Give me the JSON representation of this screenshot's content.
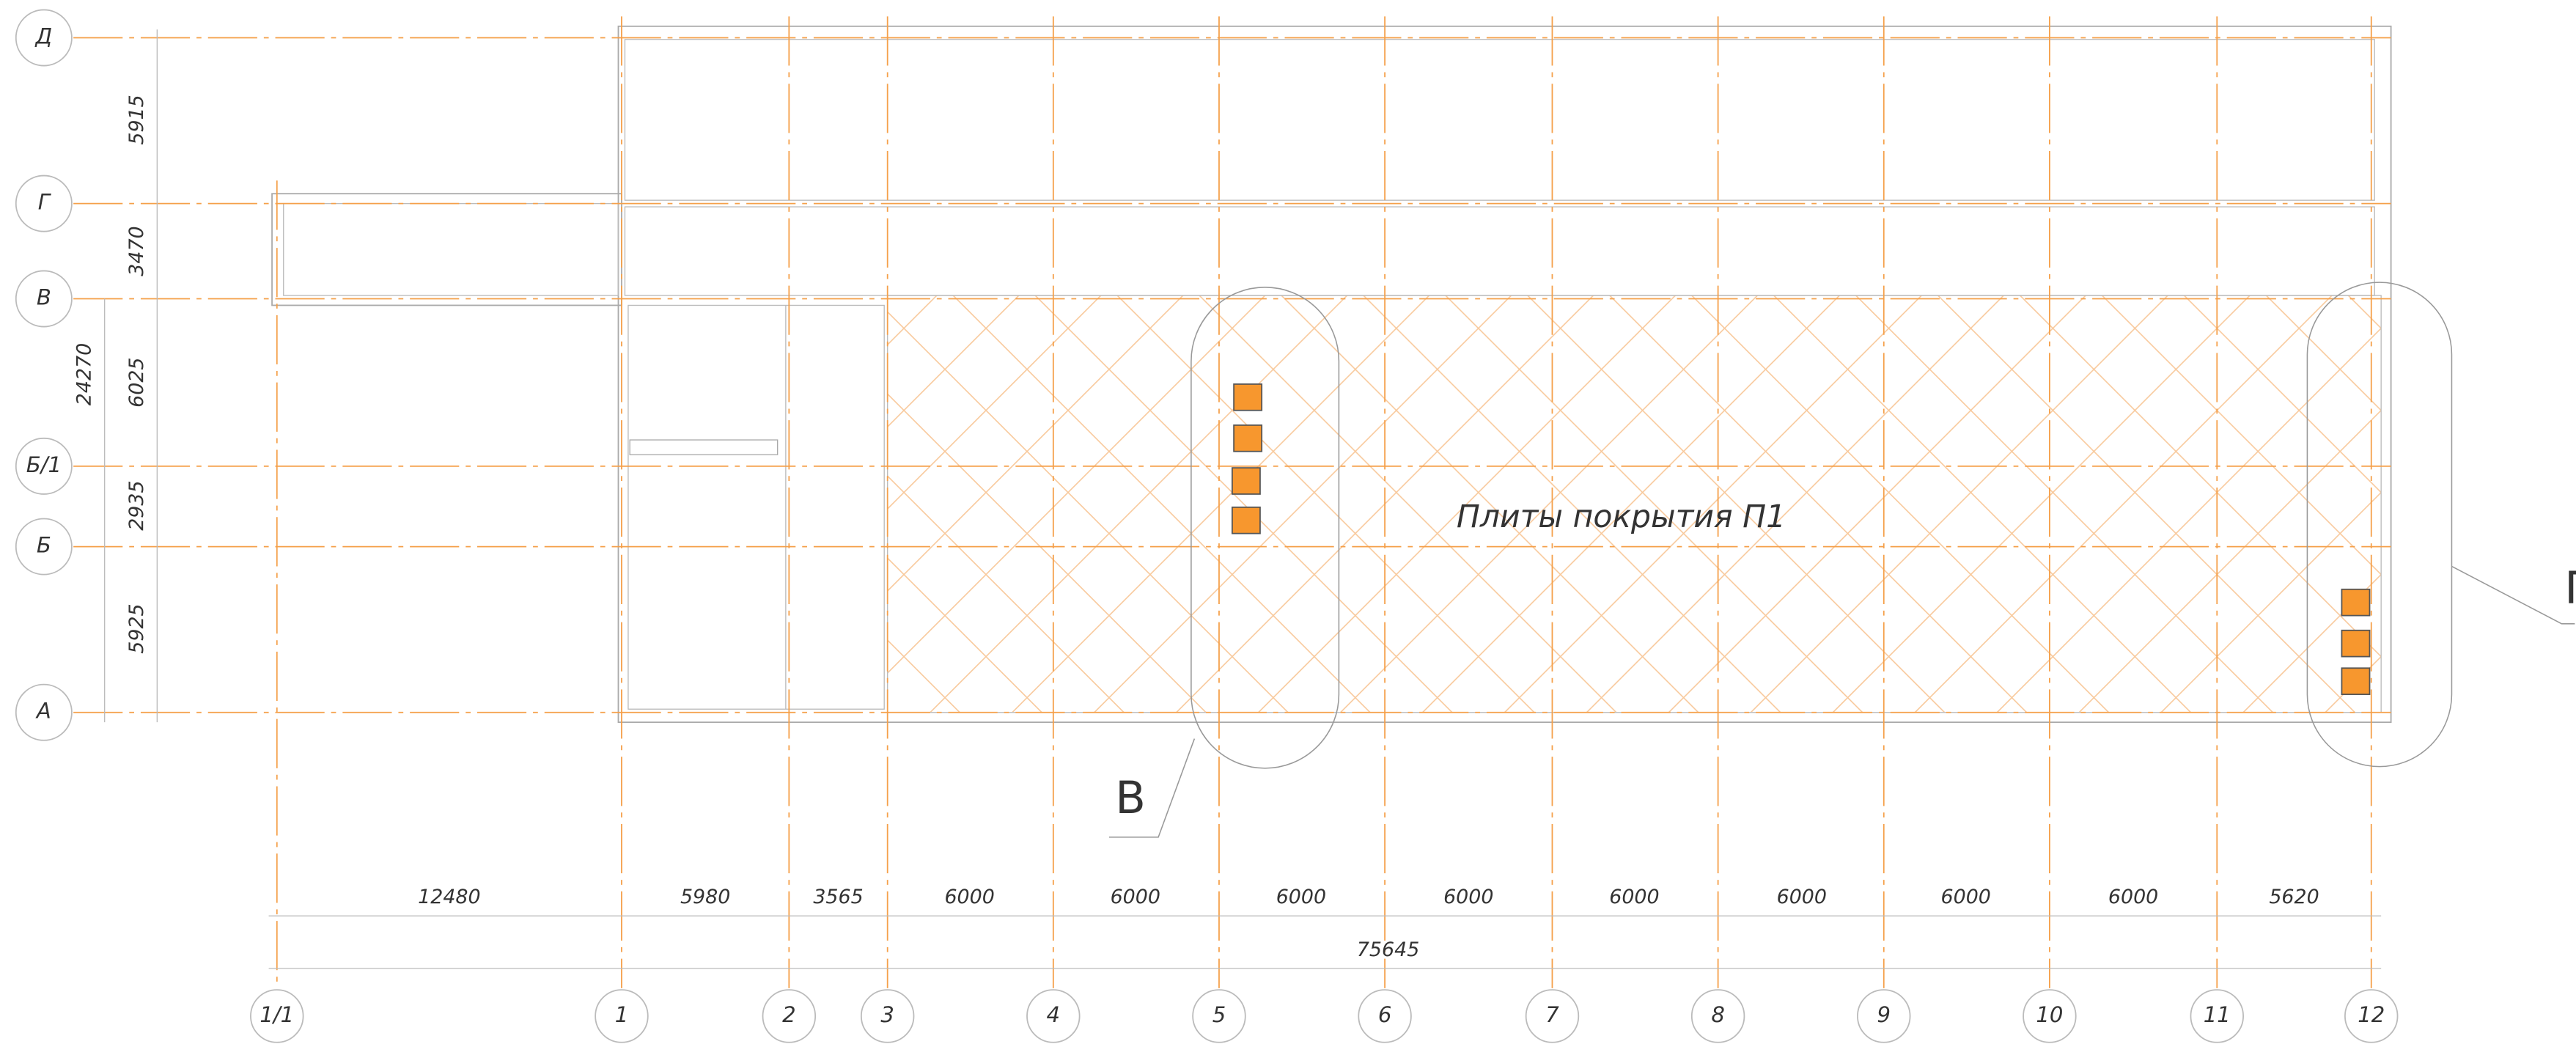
{
  "grid_axes": {
    "rows": [
      "Д",
      "Г",
      "В",
      "Б/1",
      "Б",
      "А"
    ],
    "columns": [
      "1/1",
      "1",
      "2",
      "3",
      "4",
      "5",
      "6",
      "7",
      "8",
      "9",
      "10",
      "11",
      "12"
    ]
  },
  "dimensions": {
    "left": [
      "5915",
      "3470",
      "6025",
      "2935",
      "5925"
    ],
    "left_total": "24270",
    "bottom": [
      "12480",
      "5980",
      "3565",
      "6000",
      "6000",
      "6000",
      "6000",
      "6000",
      "6000",
      "6000",
      "6000",
      "5620"
    ],
    "bottom_total": "75645"
  },
  "annotations": {
    "plates_label": "Плиты покрытия П1",
    "callouts": [
      "В",
      "Г"
    ]
  }
}
